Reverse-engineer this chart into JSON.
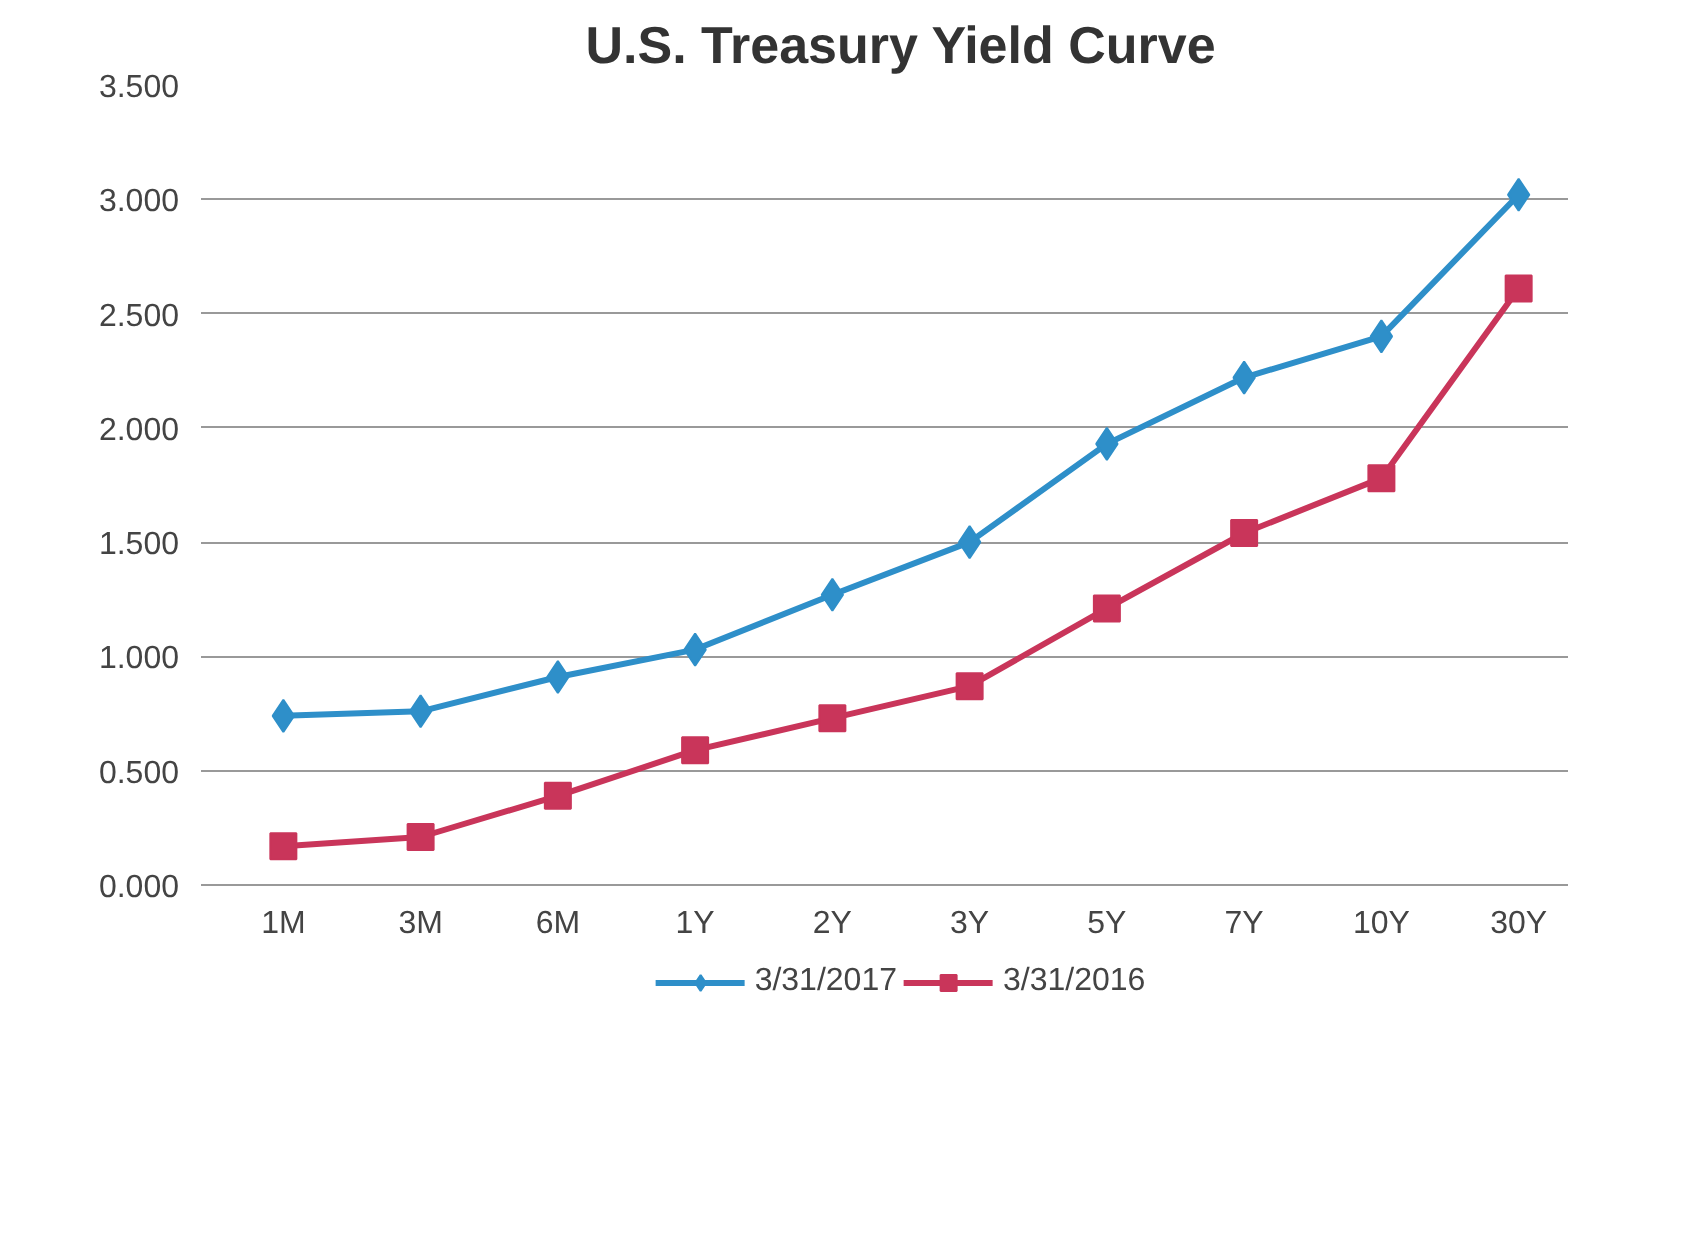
{
  "chart_data": {
    "type": "line",
    "title": "U.S. Treasury Yield Curve",
    "categories": [
      "1M",
      "3M",
      "6M",
      "1Y",
      "2Y",
      "3Y",
      "5Y",
      "7Y",
      "10Y",
      "30Y"
    ],
    "series": [
      {
        "name": "3/31/2017",
        "color": "#2e8fc9",
        "marker": "diamond",
        "values": [
          0.74,
          0.76,
          0.91,
          1.03,
          1.27,
          1.5,
          1.93,
          2.22,
          2.4,
          3.02
        ]
      },
      {
        "name": "3/31/2016",
        "color": "#c9355a",
        "marker": "square",
        "values": [
          0.17,
          0.21,
          0.39,
          0.59,
          0.73,
          0.87,
          1.21,
          1.54,
          1.78,
          2.61
        ]
      }
    ],
    "ylim": [
      0,
      3.5
    ],
    "yticks": [
      {
        "value": 0,
        "label": "0.000"
      },
      {
        "value": 0.5,
        "label": "0.500"
      },
      {
        "value": 1,
        "label": "1.000"
      },
      {
        "value": 1.5,
        "label": "1.500"
      },
      {
        "value": 2,
        "label": "2.000"
      },
      {
        "value": 2.5,
        "label": "2.500"
      },
      {
        "value": 3,
        "label": "3.000"
      },
      {
        "value": 3.5,
        "label": "3.500"
      }
    ],
    "grid": "y",
    "legend": "bottom",
    "line_style": "solid"
  }
}
